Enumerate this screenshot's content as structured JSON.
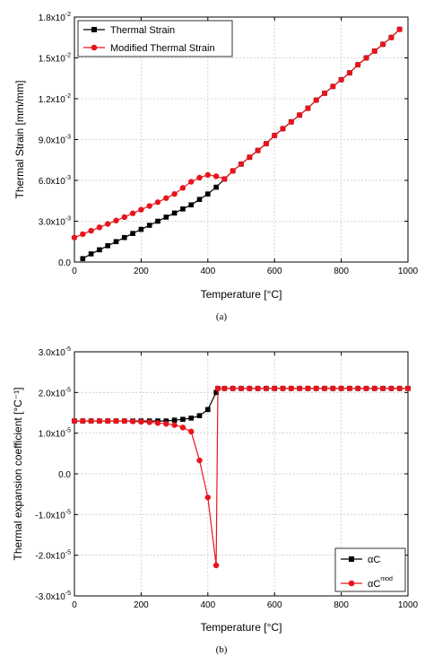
{
  "chart_data": [
    {
      "type": "line",
      "panel_label": "(a)",
      "xlabel": "Temperature [°C]",
      "ylabel": "Thermal Strain [mm/mm]",
      "xlim": [
        0,
        1000
      ],
      "ylim": [
        0,
        0.018
      ],
      "x_ticks": [
        0,
        200,
        400,
        600,
        800,
        1000
      ],
      "x_tick_labels": [
        "0",
        "200",
        "400",
        "600",
        "800",
        "1000"
      ],
      "y_ticks": [
        0,
        0.003,
        0.006,
        0.009,
        0.012,
        0.015,
        0.018
      ],
      "y_tick_labels": [
        {
          "base": "0.0",
          "exp": ""
        },
        {
          "base": "3.0x10",
          "exp": "-3"
        },
        {
          "base": "6.0x10",
          "exp": "-3"
        },
        {
          "base": "9.0x10",
          "exp": "-3"
        },
        {
          "base": "1.2x10",
          "exp": "-2"
        },
        {
          "base": "1.5x10",
          "exp": "-2"
        },
        {
          "base": "1.8x10",
          "exp": "-2"
        }
      ],
      "grid": true,
      "legend_position": "top-left",
      "series": [
        {
          "name": "Thermal Strain",
          "name_sup": "",
          "color": "#000000",
          "marker": "square",
          "x": [
            25,
            50,
            75,
            100,
            125,
            150,
            175,
            200,
            225,
            250,
            275,
            300,
            325,
            350,
            375,
            400,
            425,
            450,
            475,
            500,
            525,
            550,
            575,
            600,
            625,
            650,
            675,
            700,
            725,
            750,
            775,
            800,
            825,
            850,
            875,
            900,
            925,
            950,
            975
          ],
          "y": [
            0.00025,
            0.0006,
            0.0009,
            0.0012,
            0.0015,
            0.0018,
            0.0021,
            0.0024,
            0.0027,
            0.003,
            0.0033,
            0.0036,
            0.0039,
            0.0042,
            0.0046,
            0.005,
            0.0055,
            0.0061,
            0.0067,
            0.0072,
            0.0077,
            0.0082,
            0.0087,
            0.0093,
            0.0098,
            0.0103,
            0.0108,
            0.0113,
            0.0119,
            0.0124,
            0.0129,
            0.0134,
            0.0139,
            0.0145,
            0.015,
            0.0155,
            0.016,
            0.0165,
            0.0171
          ]
        },
        {
          "name": "Modified Thermal Strain",
          "name_sup": "",
          "color": "#e8141c",
          "marker": "circle",
          "x": [
            0,
            25,
            50,
            75,
            100,
            125,
            150,
            175,
            200,
            225,
            250,
            275,
            300,
            325,
            350,
            375,
            400,
            425,
            450,
            475,
            500,
            525,
            550,
            575,
            600,
            625,
            650,
            675,
            700,
            725,
            750,
            775,
            800,
            825,
            850,
            875,
            900,
            925,
            950,
            975
          ],
          "y": [
            0.0018,
            0.00205,
            0.0023,
            0.00255,
            0.0028,
            0.00305,
            0.0033,
            0.00358,
            0.00385,
            0.00412,
            0.0044,
            0.0047,
            0.005,
            0.00545,
            0.0059,
            0.0062,
            0.0064,
            0.0063,
            0.0061,
            0.0067,
            0.0072,
            0.0077,
            0.0082,
            0.0087,
            0.0093,
            0.0098,
            0.0103,
            0.0108,
            0.0113,
            0.0119,
            0.0124,
            0.0129,
            0.0134,
            0.0139,
            0.0145,
            0.015,
            0.0155,
            0.016,
            0.0165,
            0.0171
          ]
        }
      ]
    },
    {
      "type": "line",
      "panel_label": "(b)",
      "xlabel": "Temperature [°C]",
      "ylabel": "Thermal expansion coefficient [°C⁻¹]",
      "xlim": [
        0,
        1000
      ],
      "ylim": [
        -3e-05,
        3e-05
      ],
      "x_ticks": [
        0,
        200,
        400,
        600,
        800,
        1000
      ],
      "x_tick_labels": [
        "0",
        "200",
        "400",
        "600",
        "800",
        "1000"
      ],
      "y_ticks": [
        -3e-05,
        -2e-05,
        -1e-05,
        0,
        1e-05,
        2e-05,
        3e-05
      ],
      "y_tick_labels": [
        {
          "base": "-3.0x10",
          "exp": "-5"
        },
        {
          "base": "-2.0x10",
          "exp": "-5"
        },
        {
          "base": "-1.0x10",
          "exp": "-5"
        },
        {
          "base": "0.0",
          "exp": ""
        },
        {
          "base": "1.0x10",
          "exp": "-5"
        },
        {
          "base": "2.0x10",
          "exp": "-5"
        },
        {
          "base": "3.0x10",
          "exp": "-5"
        }
      ],
      "grid": true,
      "legend_position": "bottom-right",
      "series": [
        {
          "name": "αC",
          "name_sup": "",
          "color": "#000000",
          "marker": "square",
          "x": [
            0,
            25,
            50,
            75,
            100,
            125,
            150,
            175,
            200,
            225,
            250,
            275,
            300,
            325,
            350,
            375,
            400,
            425,
            430,
            450,
            475,
            500,
            525,
            550,
            575,
            600,
            625,
            650,
            675,
            700,
            725,
            750,
            775,
            800,
            825,
            850,
            875,
            900,
            925,
            950,
            975,
            1000
          ],
          "y": [
            1.3e-05,
            1.3e-05,
            1.3e-05,
            1.3e-05,
            1.3e-05,
            1.3e-05,
            1.3e-05,
            1.3e-05,
            1.3e-05,
            1.3e-05,
            1.3e-05,
            1.3e-05,
            1.32e-05,
            1.34e-05,
            1.37e-05,
            1.43e-05,
            1.58e-05,
            2e-05,
            2.1e-05,
            2.1e-05,
            2.1e-05,
            2.1e-05,
            2.1e-05,
            2.1e-05,
            2.1e-05,
            2.1e-05,
            2.1e-05,
            2.1e-05,
            2.1e-05,
            2.1e-05,
            2.1e-05,
            2.1e-05,
            2.1e-05,
            2.1e-05,
            2.1e-05,
            2.1e-05,
            2.1e-05,
            2.1e-05,
            2.1e-05,
            2.1e-05,
            2.1e-05,
            2.1e-05
          ]
        },
        {
          "name": "αC",
          "name_sup": "mod",
          "color": "#e8141c",
          "marker": "circle",
          "x": [
            0,
            25,
            50,
            75,
            100,
            125,
            150,
            175,
            200,
            225,
            250,
            275,
            300,
            325,
            350,
            375,
            400,
            425,
            430,
            450,
            475,
            500,
            525,
            550,
            575,
            600,
            625,
            650,
            675,
            700,
            725,
            750,
            775,
            800,
            825,
            850,
            875,
            900,
            925,
            950,
            975,
            1000
          ],
          "y": [
            1.3e-05,
            1.3e-05,
            1.3e-05,
            1.3e-05,
            1.3e-05,
            1.3e-05,
            1.3e-05,
            1.29e-05,
            1.28e-05,
            1.27e-05,
            1.25e-05,
            1.23e-05,
            1.2e-05,
            1.14e-05,
            1.04e-05,
            3.3e-06,
            -5.8e-06,
            -2.25e-05,
            2.1e-05,
            2.1e-05,
            2.1e-05,
            2.1e-05,
            2.1e-05,
            2.1e-05,
            2.1e-05,
            2.1e-05,
            2.1e-05,
            2.1e-05,
            2.1e-05,
            2.1e-05,
            2.1e-05,
            2.1e-05,
            2.1e-05,
            2.1e-05,
            2.1e-05,
            2.1e-05,
            2.1e-05,
            2.1e-05,
            2.1e-05,
            2.1e-05,
            2.1e-05,
            2.1e-05
          ]
        }
      ]
    }
  ]
}
